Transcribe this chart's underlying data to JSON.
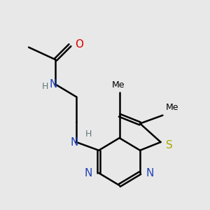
{
  "background_color": "#e8e8e8",
  "bond_color": "#000000",
  "bond_width": 1.8,
  "figsize": [
    3.0,
    3.0
  ],
  "dpi": 100,
  "colors": {
    "O": "#dd0000",
    "N": "#2244bb",
    "H": "#607878",
    "S": "#aaaa00",
    "C": "#000000"
  }
}
